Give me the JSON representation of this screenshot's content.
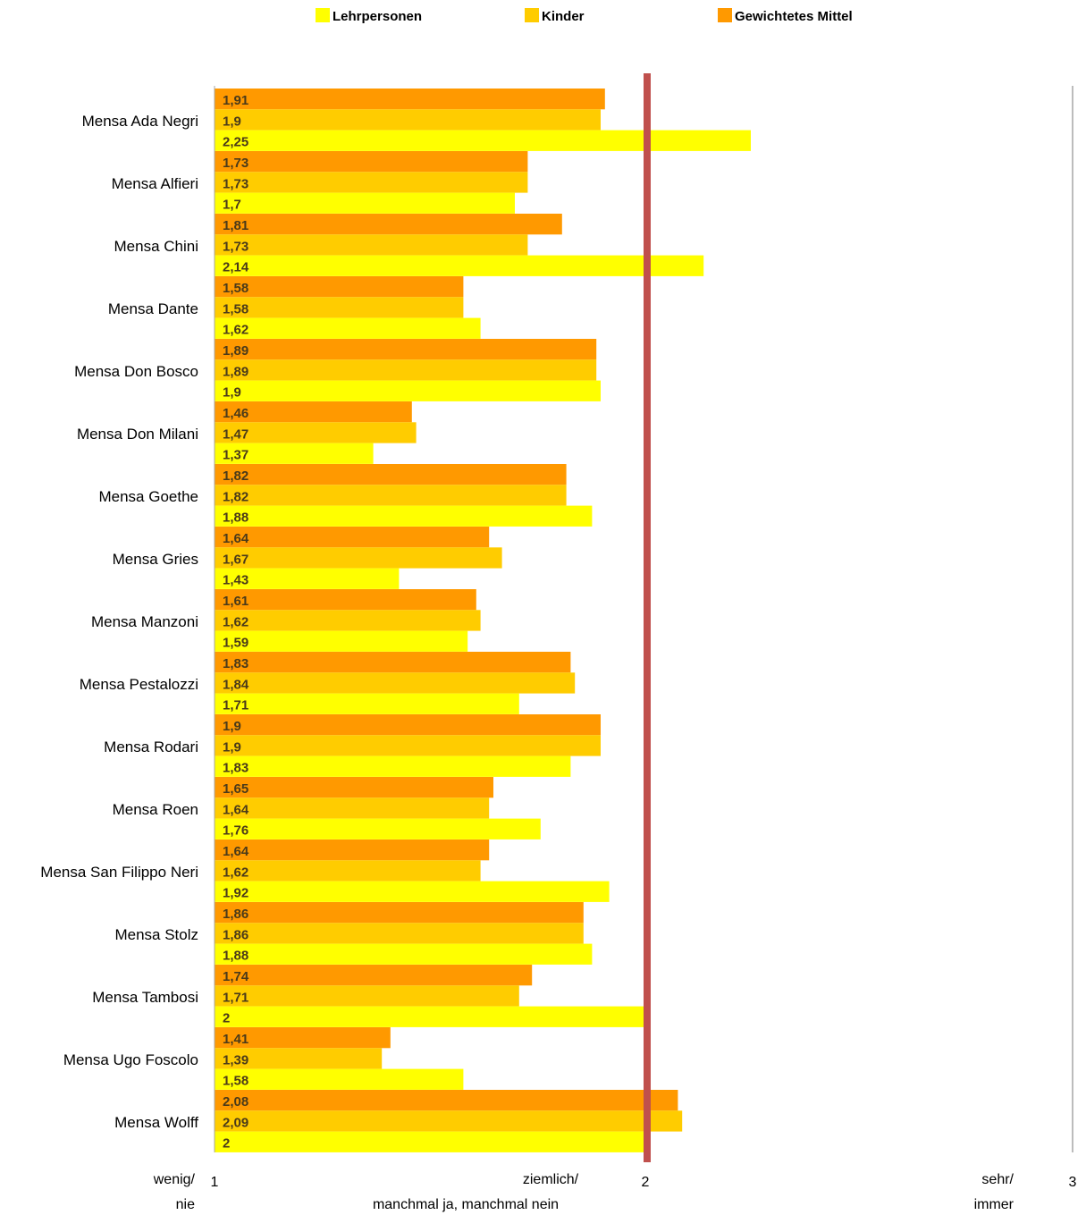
{
  "chart_data": {
    "type": "bar",
    "orientation": "horizontal",
    "title": "",
    "xlim": [
      1,
      3
    ],
    "categories": [
      "Mensa Ada Negri",
      "Mensa Alfieri",
      "Mensa Chini",
      "Mensa Dante",
      "Mensa Don Bosco",
      "Mensa Don Milani",
      "Mensa Goethe",
      "Mensa Gries",
      "Mensa Manzoni",
      "Mensa Pestalozzi",
      "Mensa Rodari",
      "Mensa Roen",
      "Mensa San Filippo Neri",
      "Mensa Stolz",
      "Mensa Tambosi",
      "Mensa Ugo Foscolo",
      "Mensa Wolff"
    ],
    "series": [
      {
        "name": "Gewichtetes Mittel",
        "color": "#FF9900",
        "values": [
          1.91,
          1.73,
          1.81,
          1.58,
          1.89,
          1.46,
          1.82,
          1.64,
          1.61,
          1.83,
          1.9,
          1.65,
          1.64,
          1.86,
          1.74,
          1.41,
          2.08
        ],
        "labels": [
          "1,91",
          "1,73",
          "1,81",
          "1,58",
          "1,89",
          "1,46",
          "1,82",
          "1,64",
          "1,61",
          "1,83",
          "1,9",
          "1,65",
          "1,64",
          "1,86",
          "1,74",
          "1,41",
          "2,08"
        ]
      },
      {
        "name": "Kinder",
        "color": "#FFCC00",
        "values": [
          1.9,
          1.73,
          1.73,
          1.58,
          1.89,
          1.47,
          1.82,
          1.67,
          1.62,
          1.84,
          1.9,
          1.64,
          1.62,
          1.86,
          1.71,
          1.39,
          2.09
        ],
        "labels": [
          "1,9",
          "1,73",
          "1,73",
          "1,58",
          "1,89",
          "1,47",
          "1,82",
          "1,67",
          "1,62",
          "1,84",
          "1,9",
          "1,64",
          "1,62",
          "1,86",
          "1,71",
          "1,39",
          "2,09"
        ]
      },
      {
        "name": "Lehrpersonen",
        "color": "#FFFF00",
        "values": [
          2.25,
          1.7,
          2.14,
          1.62,
          1.9,
          1.37,
          1.88,
          1.43,
          1.59,
          1.71,
          1.83,
          1.76,
          1.92,
          1.88,
          2.0,
          1.58,
          2.0
        ],
        "labels": [
          "2,25",
          "1,7",
          "2,14",
          "1,62",
          "1,9",
          "1,37",
          "1,88",
          "1,43",
          "1,59",
          "1,71",
          "1,83",
          "1,76",
          "1,92",
          "1,88",
          "2",
          "1,58",
          "2"
        ]
      }
    ],
    "legend": {
      "position": "top",
      "order": [
        "Lehrpersonen",
        "Kinder",
        "Gewichtetes Mittel"
      ]
    },
    "reference_line": {
      "value": 2,
      "color": "#C0504D"
    },
    "x_ticks": [
      {
        "value": 1,
        "label": "1",
        "caption": [
          "wenig/",
          "nie"
        ]
      },
      {
        "value": 2,
        "label": "2",
        "caption": [
          "ziemlich/",
          "manchmal ja, manchmal nein"
        ]
      },
      {
        "value": 3,
        "label": "3",
        "caption": [
          "sehr/",
          "immer"
        ]
      }
    ]
  }
}
